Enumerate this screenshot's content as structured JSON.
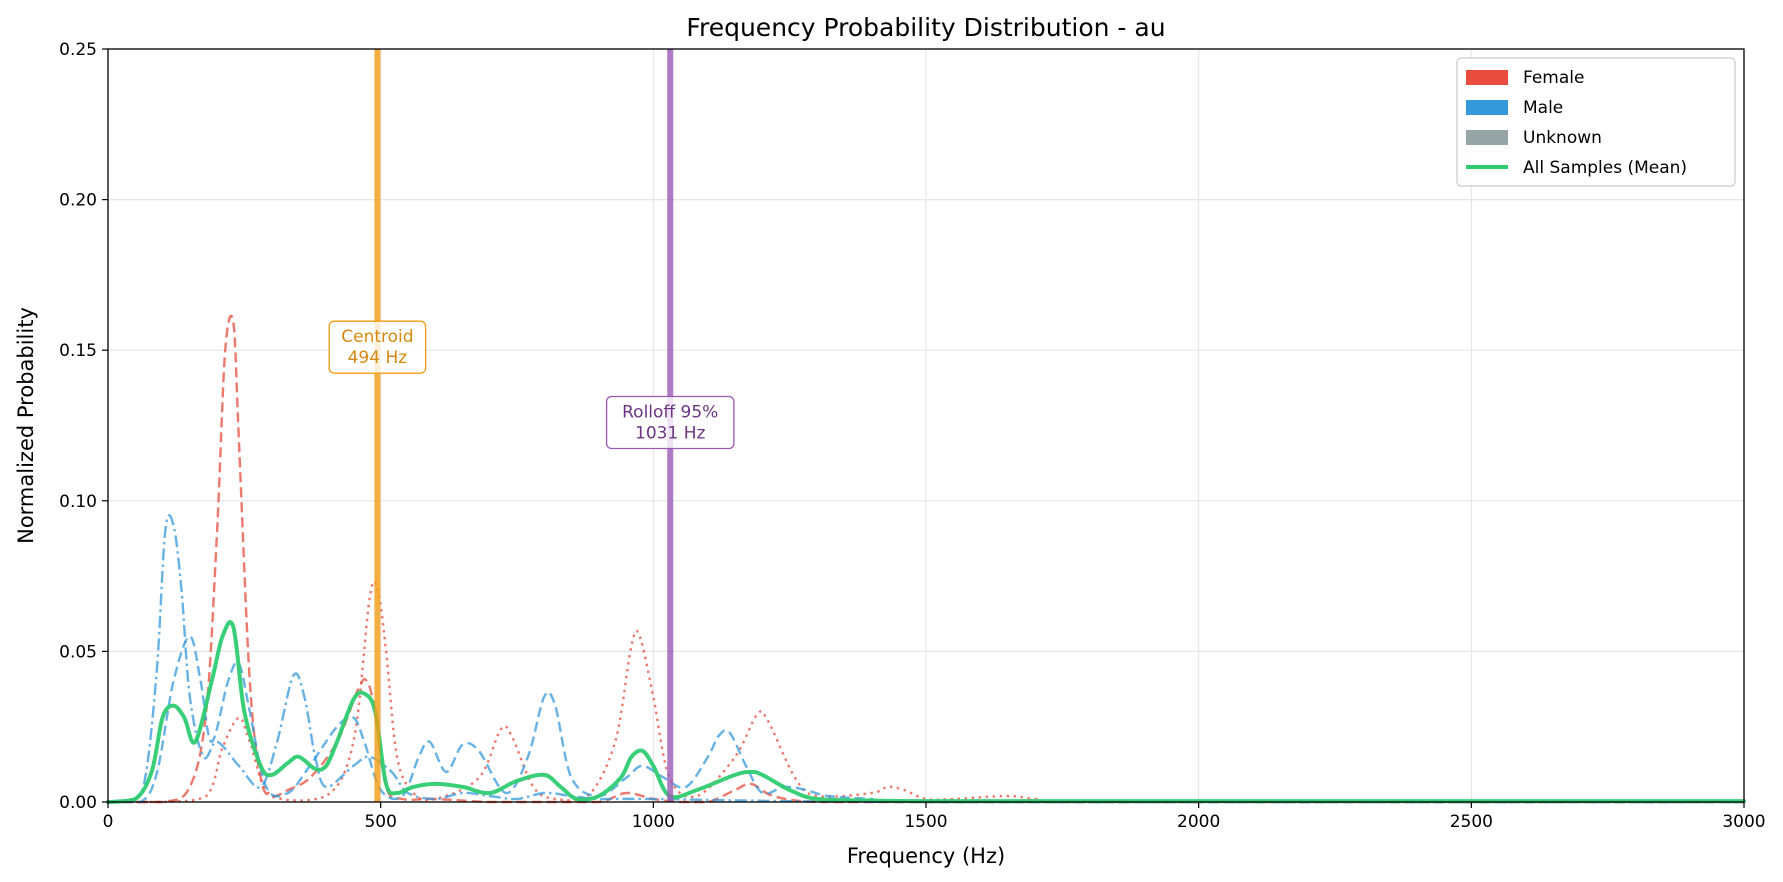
{
  "chart_data": {
    "type": "line",
    "title": "Frequency Probability Distribution - au",
    "xlabel": "Frequency (Hz)",
    "ylabel": "Normalized Probability",
    "xlim": [
      0,
      3000
    ],
    "ylim": [
      0,
      0.25
    ],
    "xticks": [
      0,
      500,
      1000,
      1500,
      2000,
      2500,
      3000
    ],
    "xtick_labels": [
      "0",
      "500",
      "1000",
      "1500",
      "2000",
      "2500",
      "3000"
    ],
    "yticks": [
      0,
      0.05,
      0.1,
      0.15,
      0.2,
      0.25
    ],
    "ytick_labels": [
      "0.00",
      "0.05",
      "0.10",
      "0.15",
      "0.20",
      "0.25"
    ],
    "grid": true,
    "legend_position": "top-right",
    "legend": [
      {
        "label": "Female",
        "kind": "patch",
        "color": "#e74c3c"
      },
      {
        "label": "Male",
        "kind": "patch",
        "color": "#3498db"
      },
      {
        "label": "Unknown",
        "kind": "patch",
        "color": "#95a5a6"
      },
      {
        "label": "All Samples (Mean)",
        "kind": "line",
        "color": "#2ecc71"
      }
    ],
    "series": [
      {
        "group": "Female",
        "color": "#e74c3c",
        "style": "dashed",
        "x": [
          0,
          100,
          150,
          180,
          200,
          215,
          230,
          240,
          260,
          280,
          300,
          330,
          370,
          420,
          460,
          475,
          490,
          510,
          540,
          600,
          700,
          800,
          900,
          950,
          1000,
          1050,
          1100,
          1150,
          1180,
          1220,
          1300,
          1500,
          3000
        ],
        "y": [
          0,
          0,
          0.005,
          0.03,
          0.09,
          0.15,
          0.159,
          0.12,
          0.04,
          0.008,
          0.002,
          0.004,
          0.008,
          0.02,
          0.038,
          0.04,
          0.03,
          0.005,
          0.001,
          0.001,
          0.0,
          0.0,
          0.0,
          0.003,
          0.001,
          0.0,
          0.0,
          0.004,
          0.006,
          0.002,
          0.0,
          0.0,
          0
        ]
      },
      {
        "group": "Female",
        "color": "#e74c3c",
        "style": "dotted",
        "x": [
          0,
          100,
          180,
          210,
          240,
          260,
          300,
          400,
          450,
          480,
          495,
          510,
          530,
          560,
          600,
          680,
          720,
          740,
          780,
          820,
          880,
          930,
          960,
          975,
          1000,
          1030,
          1080,
          1150,
          1190,
          1210,
          1260,
          1300,
          1400,
          1430,
          1460,
          1500,
          1550,
          1650,
          1700,
          1800,
          3000
        ],
        "y": [
          0,
          0,
          0.002,
          0.018,
          0.028,
          0.02,
          0.002,
          0.002,
          0.02,
          0.068,
          0.07,
          0.05,
          0.015,
          0.003,
          0.001,
          0.008,
          0.024,
          0.022,
          0.005,
          0.001,
          0.002,
          0.02,
          0.052,
          0.055,
          0.035,
          0.008,
          0.002,
          0.015,
          0.029,
          0.027,
          0.008,
          0.002,
          0.003,
          0.005,
          0.004,
          0.001,
          0.001,
          0.002,
          0.001,
          0.0,
          0
        ]
      },
      {
        "group": "Male",
        "color": "#3498db",
        "style": "dashdot",
        "x": [
          0,
          50,
          70,
          90,
          105,
          120,
          135,
          150,
          175,
          200,
          240,
          280,
          310,
          340,
          360,
          380,
          400,
          450,
          480,
          520,
          550,
          600,
          650,
          700,
          750,
          800,
          850,
          900,
          1000,
          1500,
          3000
        ],
        "y": [
          0,
          0.001,
          0.01,
          0.045,
          0.09,
          0.092,
          0.07,
          0.035,
          0.015,
          0.02,
          0.012,
          0.005,
          0.02,
          0.042,
          0.035,
          0.015,
          0.005,
          0.012,
          0.015,
          0.01,
          0.003,
          0.001,
          0.003,
          0.002,
          0.001,
          0.003,
          0.002,
          0.001,
          0.001,
          0.0,
          0
        ]
      },
      {
        "group": "Male",
        "color": "#3498db",
        "style": "dashed",
        "x": [
          0,
          60,
          90,
          120,
          150,
          170,
          190,
          220,
          240,
          260,
          290,
          330,
          370,
          420,
          450,
          470,
          500,
          540,
          570,
          590,
          620,
          650,
          680,
          730,
          770,
          800,
          820,
          850,
          900,
          950,
          980,
          1020,
          1060,
          1100,
          1120,
          1140,
          1170,
          1200,
          1240,
          1280,
          1320,
          1400,
          1500,
          3000
        ],
        "y": [
          0,
          0.0,
          0.01,
          0.04,
          0.055,
          0.04,
          0.02,
          0.04,
          0.046,
          0.03,
          0.005,
          0.003,
          0.012,
          0.025,
          0.028,
          0.02,
          0.004,
          0.002,
          0.015,
          0.02,
          0.01,
          0.019,
          0.017,
          0.003,
          0.015,
          0.035,
          0.032,
          0.008,
          0.002,
          0.008,
          0.012,
          0.008,
          0.005,
          0.015,
          0.022,
          0.023,
          0.012,
          0.003,
          0.005,
          0.004,
          0.002,
          0.001,
          0.0,
          0
        ]
      },
      {
        "group": "All Samples (Mean)",
        "color": "#2ecc71",
        "style": "solid",
        "width": 4,
        "x": [
          0,
          50,
          80,
          100,
          120,
          140,
          160,
          190,
          210,
          230,
          250,
          280,
          300,
          330,
          350,
          380,
          400,
          420,
          450,
          470,
          490,
          510,
          530,
          560,
          600,
          650,
          700,
          750,
          800,
          830,
          860,
          900,
          940,
          960,
          980,
          1000,
          1030,
          1080,
          1150,
          1180,
          1200,
          1250,
          1300,
          1400,
          1500,
          2000,
          3000
        ],
        "y": [
          0,
          0.001,
          0.01,
          0.028,
          0.032,
          0.028,
          0.02,
          0.04,
          0.055,
          0.058,
          0.03,
          0.012,
          0.009,
          0.013,
          0.015,
          0.011,
          0.012,
          0.02,
          0.034,
          0.036,
          0.03,
          0.006,
          0.003,
          0.005,
          0.006,
          0.005,
          0.003,
          0.007,
          0.009,
          0.005,
          0.001,
          0.002,
          0.008,
          0.015,
          0.017,
          0.012,
          0.002,
          0.004,
          0.009,
          0.01,
          0.009,
          0.004,
          0.001,
          0.0005,
          0.0003,
          0.0003,
          0.0003
        ]
      }
    ],
    "vertical_lines": [
      {
        "x": 494,
        "color": "#f39c12"
      },
      {
        "x": 1031,
        "color": "#9b59b6"
      }
    ],
    "annotations": [
      {
        "x": 494,
        "y": 0.151,
        "lines": [
          "Centroid",
          "494 Hz"
        ],
        "text_color": "#d68910",
        "edge_color": "#f39c12"
      },
      {
        "x": 1031,
        "y": 0.126,
        "lines": [
          "Rolloff 95%",
          "1031 Hz"
        ],
        "text_color": "#6c3483",
        "edge_color": "#9b59b6"
      }
    ]
  }
}
